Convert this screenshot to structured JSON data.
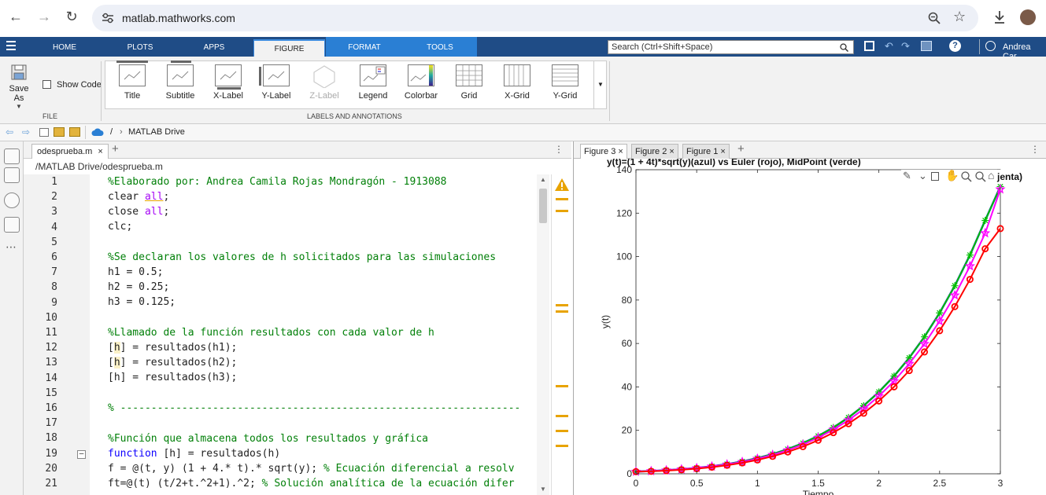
{
  "browser": {
    "url": "matlab.mathworks.com"
  },
  "toolstrip": {
    "tabs": [
      {
        "label": "HOME"
      },
      {
        "label": "PLOTS"
      },
      {
        "label": "APPS"
      },
      {
        "label": "FIGURE"
      },
      {
        "label": "FORMAT"
      },
      {
        "label": "TOOLS"
      }
    ],
    "search_placeholder": "Search (Ctrl+Shift+Space)",
    "user_name": "Andrea Car"
  },
  "ribbon": {
    "save_as": "Save As",
    "show_code": "Show Code",
    "file_section": "FILE",
    "labels_section": "LABELS AND ANNOTATIONS",
    "buttons": [
      {
        "label": "Title"
      },
      {
        "label": "Subtitle"
      },
      {
        "label": "X-Label"
      },
      {
        "label": "Y-Label"
      },
      {
        "label": "Z-Label"
      },
      {
        "label": "Legend"
      },
      {
        "label": "Colorbar"
      },
      {
        "label": "Grid"
      },
      {
        "label": "X-Grid"
      },
      {
        "label": "Y-Grid"
      }
    ]
  },
  "pathbar": {
    "separator": "/",
    "chevron": "›",
    "location": "MATLAB Drive"
  },
  "editor": {
    "tab_label": "odesprueba.m",
    "file_path": "/MATLAB Drive/odesprueba.m",
    "line_numbers": [
      "1",
      "2",
      "3",
      "4",
      "5",
      "6",
      "7",
      "8",
      "9",
      "10",
      "11",
      "12",
      "13",
      "14",
      "15",
      "16",
      "17",
      "18",
      "19",
      "20",
      "21"
    ]
  },
  "figures": {
    "tabs": [
      {
        "label": "Figure 3"
      },
      {
        "label": "Figure 2"
      },
      {
        "label": "Figure 1"
      }
    ]
  },
  "chart_data": {
    "type": "line",
    "title": "y(t)=(1 + 4t)*sqrt(y)(azul) vs Euler (rojo), MidPoint (verde)",
    "title_suffix": "jenta)",
    "xlabel": "Tiempo",
    "ylabel": "y(t)",
    "xlim": [
      0,
      3
    ],
    "ylim": [
      0,
      140
    ],
    "xticks": [
      0,
      0.5,
      1,
      1.5,
      2,
      2.5,
      3
    ],
    "yticks": [
      0,
      20,
      40,
      60,
      80,
      100,
      120,
      140
    ],
    "xtick_labels": [
      "0",
      "0.5",
      "1",
      "1.5",
      "2",
      "2.5",
      "3"
    ],
    "ytick_labels": [
      "0",
      "20",
      "40",
      "60",
      "80",
      "100",
      "120",
      "140"
    ],
    "grid": false,
    "x": [
      0,
      0.125,
      0.25,
      0.375,
      0.5,
      0.625,
      0.75,
      0.875,
      1,
      1.125,
      1.25,
      1.375,
      1.5,
      1.625,
      1.75,
      1.875,
      2,
      2.125,
      2.25,
      2.375,
      2.5,
      2.625,
      2.75,
      2.875,
      3
    ],
    "series": [
      {
        "color": "#0000ff",
        "marker": "none",
        "values": [
          1,
          1.27,
          1.63,
          2.09,
          2.69,
          3.46,
          4.44,
          5.67,
          7.19,
          9.06,
          11.34,
          14.09,
          17.39,
          21.3,
          25.93,
          31.35,
          37.67,
          44.98,
          53.4,
          63.06,
          74.07,
          86.58,
          100.72,
          116.65,
          132.25
        ]
      },
      {
        "color": "#00c000",
        "marker": "star",
        "values": [
          1,
          1.27,
          1.63,
          2.09,
          2.69,
          3.46,
          4.44,
          5.67,
          7.19,
          9.06,
          11.34,
          14.09,
          17.39,
          21.3,
          25.93,
          31.35,
          37.67,
          44.98,
          53.4,
          63.06,
          74.07,
          86.58,
          100.72,
          116.65,
          132.25
        ]
      },
      {
        "color": "#ff00ff",
        "marker": "pentagram",
        "values": [
          1,
          1.26,
          1.61,
          2.06,
          2.64,
          3.38,
          4.32,
          5.49,
          6.94,
          8.72,
          10.88,
          13.48,
          16.6,
          20.3,
          24.67,
          29.8,
          35.78,
          42.7,
          50.69,
          59.84,
          70.3,
          82.18,
          95.62,
          110.78,
          131
        ]
      },
      {
        "color": "#ff0000",
        "marker": "circle",
        "values": [
          1,
          1.13,
          1.44,
          1.84,
          2.37,
          3.05,
          3.92,
          5.01,
          6.36,
          8.03,
          10.06,
          12.51,
          15.45,
          18.94,
          23.06,
          27.89,
          33.52,
          40.03,
          47.52,
          56.1,
          65.88,
          76.98,
          89.5,
          103.6,
          112.9
        ]
      }
    ]
  }
}
